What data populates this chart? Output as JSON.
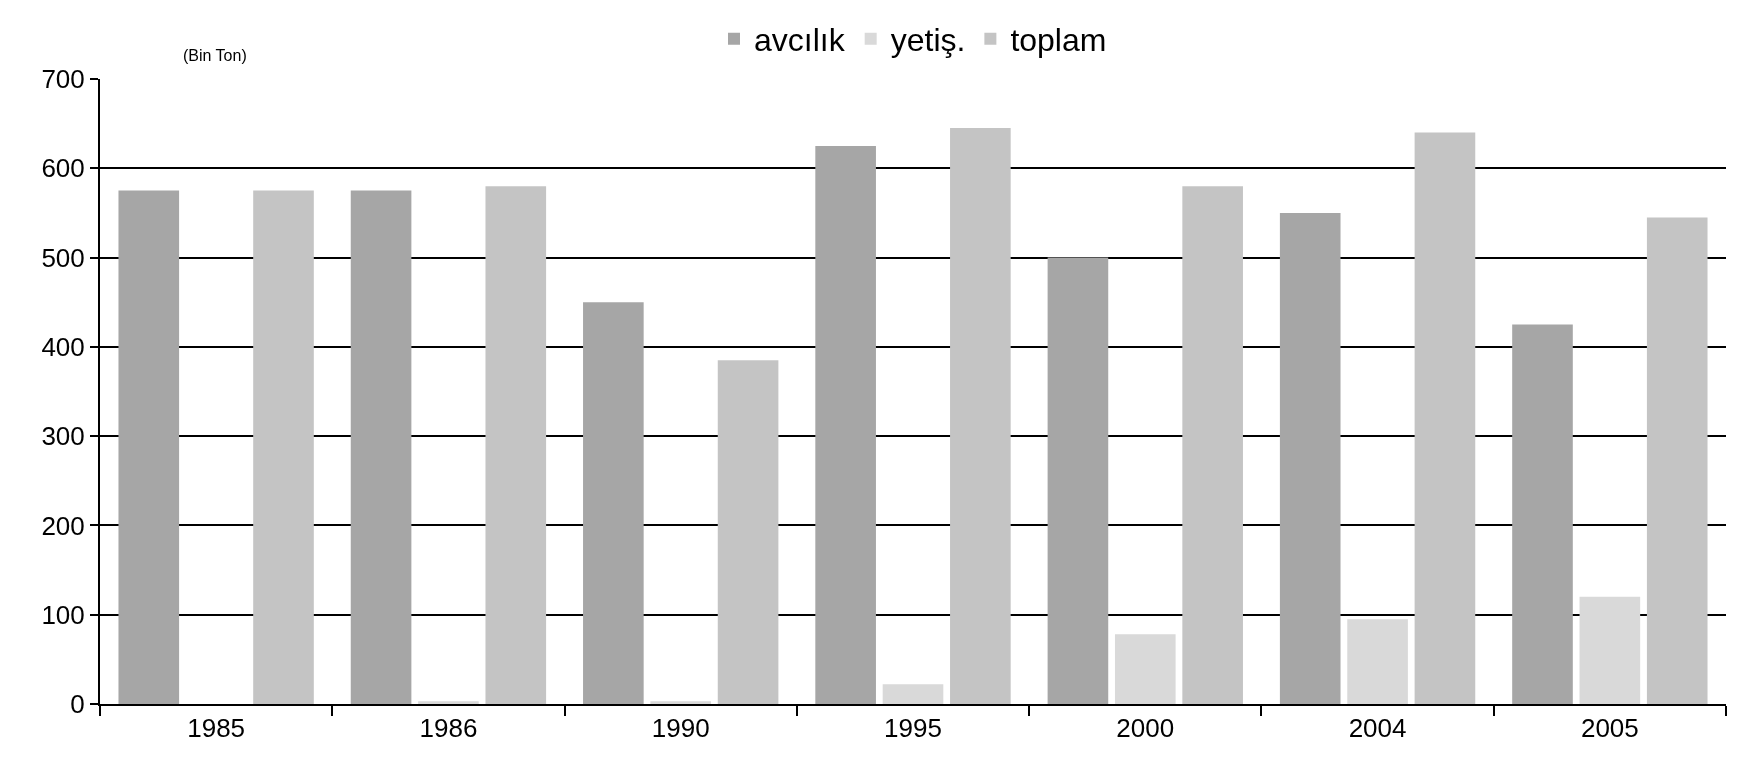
{
  "chart_data": {
    "type": "bar",
    "ylabel": "(Bin Ton)",
    "categories": [
      "1985",
      "1986",
      "1990",
      "1995",
      "2000",
      "2004",
      "2005"
    ],
    "series": [
      {
        "name": "avcılık",
        "color": "#a6a6a6",
        "values": [
          575,
          575,
          450,
          625,
          500,
          550,
          425
        ]
      },
      {
        "name": "yetiş.",
        "color": "#d9d9d9",
        "values": [
          0,
          3,
          3,
          22,
          78,
          95,
          120
        ]
      },
      {
        "name": "toplam",
        "color": "#c4c4c4",
        "values": [
          575,
          580,
          385,
          645,
          580,
          640,
          545
        ]
      }
    ],
    "ylim": [
      0,
      700
    ],
    "yticks": [
      0,
      100,
      200,
      300,
      400,
      500,
      600,
      700
    ],
    "grid": "y",
    "legend": "top"
  }
}
